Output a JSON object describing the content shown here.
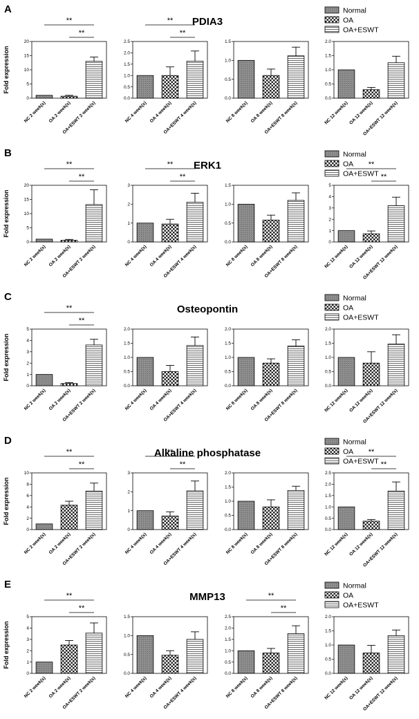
{
  "legend": {
    "labels": [
      "Normal",
      "OA",
      "OA+ESWT"
    ]
  },
  "colors": {
    "normal": "#808080",
    "oa": "checker-pattern",
    "eswt": "horizontal-stripes",
    "ink": "#000000"
  },
  "ylabel": "Fold expression",
  "chart_data": [
    {
      "panel": "A",
      "title": "PDIA3",
      "type": "bar",
      "subplots": [
        {
          "categories": [
            "NC 2 week(s)",
            "OA 2 week(s)",
            "OA+ESWT 2 week(s)"
          ],
          "values": [
            1.0,
            0.7,
            13.0
          ],
          "errors": [
            0,
            0.3,
            1.5
          ],
          "ylim": [
            0,
            20
          ],
          "yticks": [
            "0",
            "5",
            "10",
            "15",
            "20"
          ],
          "sig": [
            {
              "from": 0,
              "to": 2,
              "label": "**"
            },
            {
              "from": 1,
              "to": 2,
              "label": "**"
            }
          ]
        },
        {
          "categories": [
            "NC 4 week(s)",
            "OA 4 week(s)",
            "OA+ESWT 4 week(s)"
          ],
          "values": [
            1.0,
            1.0,
            1.63
          ],
          "errors": [
            0,
            0.38,
            0.45
          ],
          "ylim": [
            0,
            2.5
          ],
          "yticks": [
            "0.0",
            "0.5",
            "1.0",
            "1.5",
            "2.0",
            "2.5"
          ],
          "sig": [
            {
              "from": 0,
              "to": 2,
              "label": "**"
            },
            {
              "from": 1,
              "to": 2,
              "label": "**"
            }
          ]
        },
        {
          "categories": [
            "NC 8 week(s)",
            "OA 8 week(s)",
            "OA+ESWT 8 week(s)"
          ],
          "values": [
            1.0,
            0.6,
            1.12
          ],
          "errors": [
            0,
            0.17,
            0.23
          ],
          "ylim": [
            0,
            1.5
          ],
          "yticks": [
            "0.0",
            "0.5",
            "1.0",
            "1.5"
          ],
          "sig": []
        },
        {
          "categories": [
            "NC 12 week(s)",
            "OA 12 week(s)",
            "OA+ESWT 12 week(s)"
          ],
          "values": [
            1.0,
            0.3,
            1.25
          ],
          "errors": [
            0,
            0.08,
            0.23
          ],
          "ylim": [
            0,
            2.0
          ],
          "yticks": [
            "0.0",
            "0.5",
            "1.0",
            "1.5",
            "2.0"
          ],
          "sig": []
        }
      ]
    },
    {
      "panel": "B",
      "title": "ERK1",
      "type": "bar",
      "subplots": [
        {
          "categories": [
            "NC 2 week(s)",
            "OA 2 week(s)",
            "OA+ESWT 2 week(s)"
          ],
          "values": [
            1.0,
            0.6,
            13.2
          ],
          "errors": [
            0,
            0.3,
            5.2
          ],
          "ylim": [
            0,
            20
          ],
          "yticks": [
            "0",
            "5",
            "10",
            "15",
            "20"
          ],
          "sig": [
            {
              "from": 0,
              "to": 2,
              "label": "**"
            },
            {
              "from": 1,
              "to": 2,
              "label": "**"
            }
          ]
        },
        {
          "categories": [
            "NC 4 week(s)",
            "OA 4 week(s)",
            "OA+ESWT 4 week(s)"
          ],
          "values": [
            1.0,
            0.95,
            2.1
          ],
          "errors": [
            0,
            0.25,
            0.48
          ],
          "ylim": [
            0,
            3
          ],
          "yticks": [
            "0",
            "1",
            "2",
            "3"
          ],
          "sig": [
            {
              "from": 0,
              "to": 2,
              "label": "**"
            },
            {
              "from": 1,
              "to": 2,
              "label": "**"
            }
          ]
        },
        {
          "categories": [
            "NC 8 week(s)",
            "OA 8 week(s)",
            "OA+ESWT 8 week(s)"
          ],
          "values": [
            1.0,
            0.58,
            1.1
          ],
          "errors": [
            0,
            0.13,
            0.2
          ],
          "ylim": [
            0,
            1.5
          ],
          "yticks": [
            "0.0",
            "0.5",
            "1.0",
            "1.5"
          ],
          "sig": []
        },
        {
          "categories": [
            "NC 12 week(s)",
            "OA 12 week(s)",
            "OA+ESWT 12 week(s)"
          ],
          "values": [
            1.0,
            0.72,
            3.2
          ],
          "errors": [
            0,
            0.25,
            0.75
          ],
          "ylim": [
            0,
            5
          ],
          "yticks": [
            "0",
            "1",
            "2",
            "3",
            "4",
            "5"
          ],
          "sig": [
            {
              "from": 0,
              "to": 2,
              "label": "**"
            },
            {
              "from": 1,
              "to": 2,
              "label": "**"
            }
          ]
        }
      ]
    },
    {
      "panel": "C",
      "title": "Osteopontin",
      "type": "bar",
      "subplots": [
        {
          "categories": [
            "NC 2 week(s)",
            "OA 2 week(s)",
            "OA+ESWT 2 week(s)"
          ],
          "values": [
            1.0,
            0.2,
            3.6
          ],
          "errors": [
            0,
            0.08,
            0.5
          ],
          "ylim": [
            0,
            5
          ],
          "yticks": [
            "0",
            "1",
            "2",
            "3",
            "4",
            "5"
          ],
          "sig": [
            {
              "from": 0,
              "to": 2,
              "label": "**"
            },
            {
              "from": 1,
              "to": 2,
              "label": "**"
            }
          ]
        },
        {
          "categories": [
            "NC 4 week(s)",
            "OA 4 week(s)",
            "OA+ESWT 4 week(s)"
          ],
          "values": [
            1.0,
            0.5,
            1.42
          ],
          "errors": [
            0,
            0.22,
            0.3
          ],
          "ylim": [
            0,
            2.0
          ],
          "yticks": [
            "0.0",
            "0.5",
            "1.0",
            "1.5",
            "2.0"
          ],
          "sig": []
        },
        {
          "categories": [
            "NC 8 week(s)",
            "OA 8 week(s)",
            "OA+ESWT 8 week(s)"
          ],
          "values": [
            1.0,
            0.8,
            1.4
          ],
          "errors": [
            0,
            0.15,
            0.22
          ],
          "ylim": [
            0,
            2.0
          ],
          "yticks": [
            "0.0",
            "0.5",
            "1.0",
            "1.5",
            "2.0"
          ],
          "sig": []
        },
        {
          "categories": [
            "NC 12 week(s)",
            "OA 12 week(s)",
            "OA+ESWT 12 week(s)"
          ],
          "values": [
            1.0,
            0.8,
            1.47
          ],
          "errors": [
            0,
            0.4,
            0.33
          ],
          "ylim": [
            0,
            2.0
          ],
          "yticks": [
            "0.0",
            "0.5",
            "1.0",
            "1.5",
            "2.0"
          ],
          "sig": []
        }
      ]
    },
    {
      "panel": "D",
      "title": "Alkaline phosphatase",
      "type": "bar",
      "subplots": [
        {
          "categories": [
            "NC 2 week(s)",
            "OA 2 week(s)",
            "OA+ESWT 2 week(s)"
          ],
          "values": [
            1.0,
            4.3,
            6.8
          ],
          "errors": [
            0,
            0.7,
            1.4
          ],
          "ylim": [
            0,
            10
          ],
          "yticks": [
            "0",
            "2",
            "4",
            "6",
            "8",
            "10"
          ],
          "sig": [
            {
              "from": 0,
              "to": 2,
              "label": "**"
            },
            {
              "from": 1,
              "to": 2,
              "label": "**"
            }
          ]
        },
        {
          "categories": [
            "NC 4 week(s)",
            "OA 4 week(s)",
            "OA+ESWT 4 week(s)"
          ],
          "values": [
            1.0,
            0.72,
            2.05
          ],
          "errors": [
            0,
            0.22,
            0.52
          ],
          "ylim": [
            0,
            3
          ],
          "yticks": [
            "0",
            "1",
            "2",
            "3"
          ],
          "sig": [
            {
              "from": 0,
              "to": 2,
              "label": "**"
            },
            {
              "from": 1,
              "to": 2,
              "label": "**"
            }
          ]
        },
        {
          "categories": [
            "NC 8 week(s)",
            "OA 8 week(s)",
            "OA+ESWT 8 week(s)"
          ],
          "values": [
            1.0,
            0.8,
            1.38
          ],
          "errors": [
            0,
            0.25,
            0.15
          ],
          "ylim": [
            0,
            2.0
          ],
          "yticks": [
            "0.0",
            "0.5",
            "1.0",
            "1.5",
            "2.0"
          ],
          "sig": []
        },
        {
          "categories": [
            "NC 12 week(s)",
            "OA 12 week(s)",
            "OA+ESWT 12 week(s)"
          ],
          "values": [
            1.0,
            0.37,
            1.7
          ],
          "errors": [
            0,
            0.07,
            0.4
          ],
          "ylim": [
            0,
            2.5
          ],
          "yticks": [
            "0.0",
            "0.5",
            "1.0",
            "1.5",
            "2.0",
            "2.5"
          ],
          "sig": [
            {
              "from": 0,
              "to": 2,
              "label": "**"
            },
            {
              "from": 1,
              "to": 2,
              "label": "**"
            }
          ]
        }
      ]
    },
    {
      "panel": "E",
      "title": "MMP13",
      "type": "bar",
      "subplots": [
        {
          "categories": [
            "NC 2 week(s)",
            "OA 2 week(s)",
            "OA+ESWT 2 week(s)"
          ],
          "values": [
            1.0,
            2.5,
            3.55
          ],
          "errors": [
            0,
            0.4,
            0.9
          ],
          "ylim": [
            0,
            5
          ],
          "yticks": [
            "0",
            "1",
            "2",
            "3",
            "4",
            "5"
          ],
          "sig": [
            {
              "from": 0,
              "to": 2,
              "label": "**"
            },
            {
              "from": 1,
              "to": 2,
              "label": "**"
            }
          ]
        },
        {
          "categories": [
            "NC 4 week(s)",
            "OA 4 week(s)",
            "OA+ESWT 4 week(s)"
          ],
          "values": [
            1.0,
            0.48,
            0.9
          ],
          "errors": [
            0,
            0.12,
            0.2
          ],
          "ylim": [
            0,
            1.5
          ],
          "yticks": [
            "0.0",
            "0.5",
            "1.0",
            "1.5"
          ],
          "sig": []
        },
        {
          "categories": [
            "NC 8 week(s)",
            "OA 8 week(s)",
            "OA+ESWT 8 week(s)"
          ],
          "values": [
            1.0,
            0.9,
            1.75
          ],
          "errors": [
            0,
            0.2,
            0.35
          ],
          "ylim": [
            0,
            2.5
          ],
          "yticks": [
            "0.0",
            "0.5",
            "1.0",
            "1.5",
            "2.0",
            "2.5"
          ],
          "sig": [
            {
              "from": 0,
              "to": 2,
              "label": "**"
            },
            {
              "from": 1,
              "to": 2,
              "label": "**"
            }
          ]
        },
        {
          "categories": [
            "NC 12 week(s)",
            "OA 12 week(s)",
            "OA+ESWT 12 week(s)"
          ],
          "values": [
            1.0,
            0.72,
            1.33
          ],
          "errors": [
            0,
            0.27,
            0.2
          ],
          "ylim": [
            0,
            2.0
          ],
          "yticks": [
            "0.0",
            "0.5",
            "1.0",
            "1.5",
            "2.0"
          ],
          "sig": []
        }
      ]
    }
  ]
}
